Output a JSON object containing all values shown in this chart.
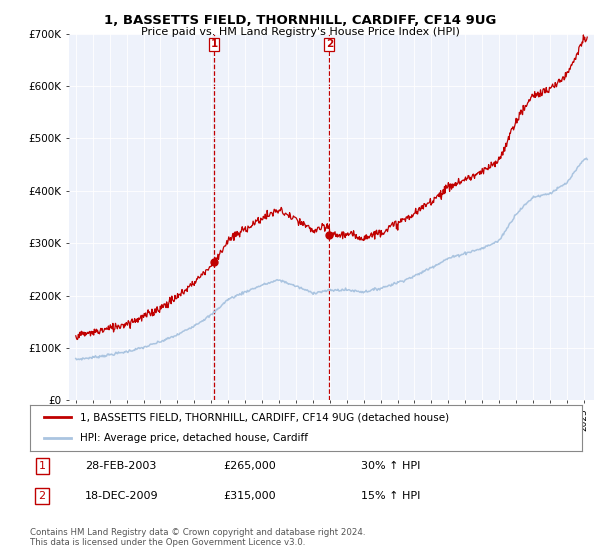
{
  "title": "1, BASSETTS FIELD, THORNHILL, CARDIFF, CF14 9UG",
  "subtitle": "Price paid vs. HM Land Registry's House Price Index (HPI)",
  "legend_line1": "1, BASSETTS FIELD, THORNHILL, CARDIFF, CF14 9UG (detached house)",
  "legend_line2": "HPI: Average price, detached house, Cardiff",
  "table_rows": [
    {
      "num": "1",
      "date": "28-FEB-2003",
      "price": "£265,000",
      "change": "30% ↑ HPI"
    },
    {
      "num": "2",
      "date": "18-DEC-2009",
      "price": "£315,000",
      "change": "15% ↑ HPI"
    }
  ],
  "footnote": "Contains HM Land Registry data © Crown copyright and database right 2024.\nThis data is licensed under the Open Government Licence v3.0.",
  "ylabel_ticks": [
    "£0",
    "£100K",
    "£200K",
    "£300K",
    "£400K",
    "£500K",
    "£600K",
    "£700K"
  ],
  "ylim": [
    0,
    700000
  ],
  "hpi_color": "#aac4e0",
  "price_color": "#c00000",
  "vline_color": "#c00000",
  "sale1_year": 2003.16,
  "sale2_year": 2009.97,
  "sale1_price": 265000,
  "sale2_price": 315000,
  "background_color": "#ffffff",
  "plot_bg_color": "#eef2fb",
  "hpi_years": [
    1995,
    1996,
    1997,
    1998,
    1999,
    2000,
    2001,
    2002,
    2003,
    2004,
    2005,
    2006,
    2007,
    2008,
    2009,
    2010,
    2011,
    2012,
    2013,
    2014,
    2015,
    2016,
    2017,
    2018,
    2019,
    2020,
    2021,
    2022,
    2023,
    2024,
    2025
  ],
  "hpi_values": [
    78000,
    82000,
    87000,
    93000,
    101000,
    112000,
    125000,
    143000,
    163000,
    193000,
    207000,
    220000,
    230000,
    218000,
    205000,
    210000,
    211000,
    207000,
    214000,
    225000,
    237000,
    254000,
    271000,
    281000,
    290000,
    305000,
    356000,
    388000,
    395000,
    415000,
    460000
  ]
}
